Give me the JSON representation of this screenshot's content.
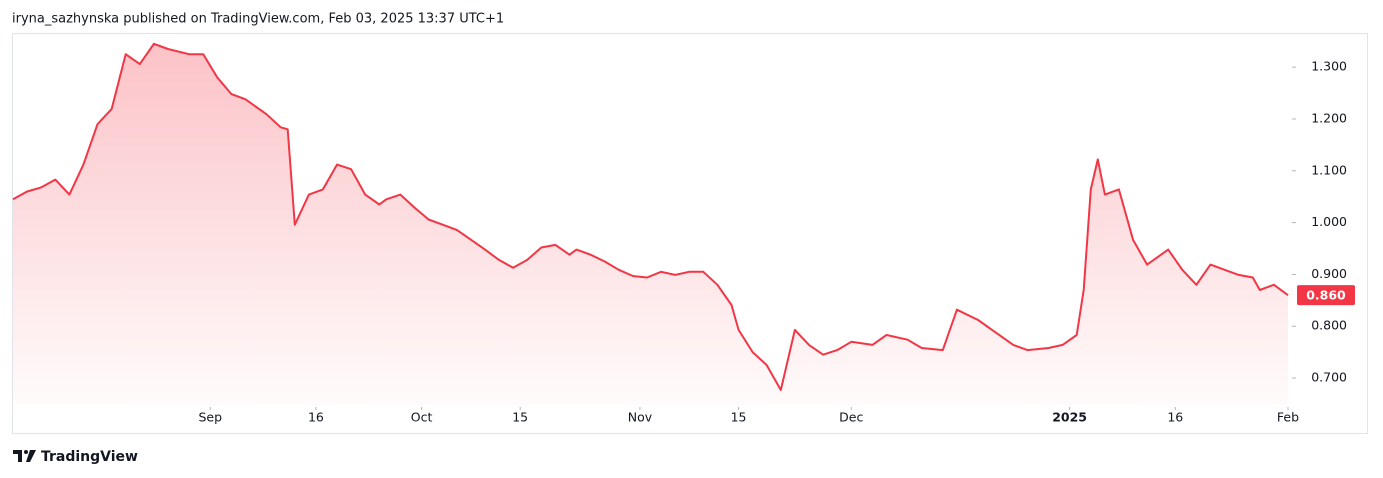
{
  "header": "iryna_sazhynska published on TradingView.com, Feb 03, 2025 13:37 UTC+1",
  "brand": "TradingView",
  "chart_data": {
    "type": "area",
    "color": "#f23645",
    "x": [
      "2024-08-04",
      "2024-08-06",
      "2024-08-08",
      "2024-08-10",
      "2024-08-12",
      "2024-08-14",
      "2024-08-16",
      "2024-08-18",
      "2024-08-20",
      "2024-08-22",
      "2024-08-24",
      "2024-08-26",
      "2024-08-29",
      "2024-08-31",
      "2024-09-02",
      "2024-09-04",
      "2024-09-06",
      "2024-09-09",
      "2024-09-11",
      "2024-09-12",
      "2024-09-13",
      "2024-09-15",
      "2024-09-17",
      "2024-09-19",
      "2024-09-21",
      "2024-09-23",
      "2024-09-25",
      "2024-09-26",
      "2024-09-28",
      "2024-09-30",
      "2024-10-02",
      "2024-10-04",
      "2024-10-06",
      "2024-10-08",
      "2024-10-10",
      "2024-10-12",
      "2024-10-14",
      "2024-10-16",
      "2024-10-18",
      "2024-10-20",
      "2024-10-22",
      "2024-10-23",
      "2024-10-25",
      "2024-10-27",
      "2024-10-29",
      "2024-10-31",
      "2024-11-02",
      "2024-11-04",
      "2024-11-06",
      "2024-11-08",
      "2024-11-10",
      "2024-11-12",
      "2024-11-14",
      "2024-11-15",
      "2024-11-17",
      "2024-11-19",
      "2024-11-21",
      "2024-11-23",
      "2024-11-25",
      "2024-11-27",
      "2024-11-29",
      "2024-12-01",
      "2024-12-04",
      "2024-12-06",
      "2024-12-09",
      "2024-12-11",
      "2024-12-14",
      "2024-12-16",
      "2024-12-19",
      "2024-12-21",
      "2024-12-24",
      "2024-12-26",
      "2024-12-29",
      "2024-12-31",
      "2025-01-02",
      "2025-01-03",
      "2025-01-04",
      "2025-01-05",
      "2025-01-06",
      "2025-01-08",
      "2025-01-10",
      "2025-01-12",
      "2025-01-15",
      "2025-01-17",
      "2025-01-19",
      "2025-01-21",
      "2025-01-23",
      "2025-01-25",
      "2025-01-27",
      "2025-01-28",
      "2025-01-30",
      "2025-02-01"
    ],
    "values": [
      1.045,
      1.06,
      1.068,
      1.083,
      1.054,
      1.112,
      1.19,
      1.219,
      1.325,
      1.306,
      1.345,
      1.335,
      1.325,
      1.325,
      1.28,
      1.248,
      1.238,
      1.209,
      1.184,
      1.18,
      0.996,
      1.054,
      1.064,
      1.112,
      1.103,
      1.054,
      1.035,
      1.045,
      1.054,
      1.029,
      1.006,
      0.996,
      0.986,
      0.967,
      0.948,
      0.928,
      0.913,
      0.928,
      0.952,
      0.957,
      0.938,
      0.948,
      0.938,
      0.925,
      0.909,
      0.897,
      0.894,
      0.905,
      0.899,
      0.905,
      0.905,
      0.88,
      0.841,
      0.793,
      0.75,
      0.725,
      0.677,
      0.793,
      0.764,
      0.745,
      0.754,
      0.77,
      0.764,
      0.783,
      0.774,
      0.758,
      0.754,
      0.832,
      0.812,
      0.793,
      0.764,
      0.754,
      0.758,
      0.764,
      0.783,
      0.87,
      1.064,
      1.122,
      1.054,
      1.064,
      0.967,
      0.919,
      0.948,
      0.909,
      0.88,
      0.919,
      0.909,
      0.899,
      0.894,
      0.87,
      0.88,
      0.86
    ],
    "last_price": {
      "value": 0.86,
      "label": "0.860"
    },
    "xlim": [
      "2024-08-04",
      "2025-02-01"
    ],
    "xticks": [
      {
        "value": "2024-09-01",
        "label": "Sep"
      },
      {
        "value": "2024-09-16",
        "label": "16"
      },
      {
        "value": "2024-10-01",
        "label": "Oct"
      },
      {
        "value": "2024-10-15",
        "label": "15"
      },
      {
        "value": "2024-11-01",
        "label": "Nov"
      },
      {
        "value": "2024-11-15",
        "label": "15"
      },
      {
        "value": "2024-12-01",
        "label": "Dec"
      },
      {
        "value": "2025-01-01",
        "label": "2025"
      },
      {
        "value": "2025-01-16",
        "label": "16"
      },
      {
        "value": "2025-02-01",
        "label": "Feb"
      }
    ],
    "ylim": [
      0.648,
      1.364
    ],
    "yticks": [
      {
        "value": 0.7,
        "label": "0.700"
      },
      {
        "value": 0.8,
        "label": "0.800"
      },
      {
        "value": 0.9,
        "label": "0.900"
      },
      {
        "value": 1.0,
        "label": "1.000"
      },
      {
        "value": 1.1,
        "label": "1.100"
      },
      {
        "value": 1.2,
        "label": "1.200"
      },
      {
        "value": 1.3,
        "label": "1.300"
      }
    ]
  }
}
